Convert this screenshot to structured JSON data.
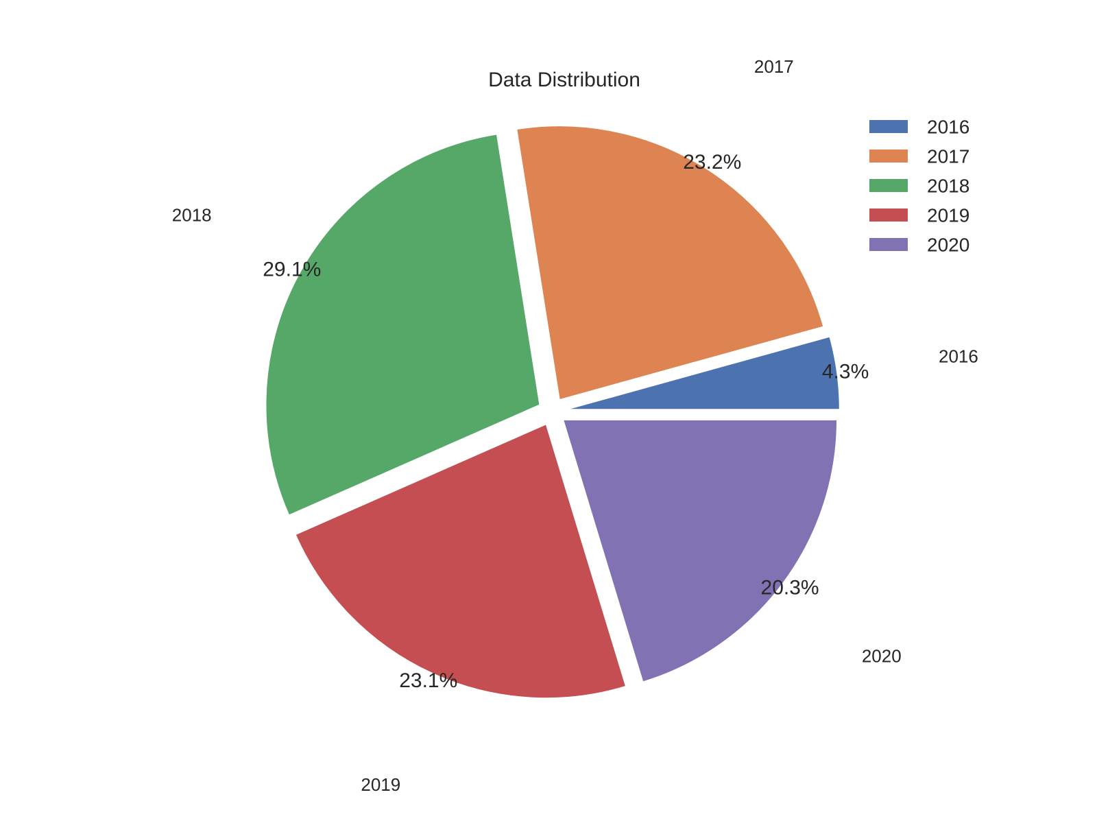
{
  "chart_data": {
    "type": "pie",
    "title": "Data Distribution",
    "categories": [
      "2016",
      "2017",
      "2018",
      "2019",
      "2020"
    ],
    "values": [
      4.3,
      23.2,
      29.1,
      23.1,
      20.3
    ],
    "percent_labels": [
      "4.3%",
      "23.2%",
      "29.1%",
      "23.1%",
      "20.3%"
    ],
    "colors": [
      "#4c72b0",
      "#dd8452",
      "#55a868",
      "#c44e52",
      "#8172b3"
    ],
    "start_angle_deg": 0,
    "direction": "counterclockwise",
    "exploded": true,
    "legend": {
      "position": "top-right",
      "entries": [
        "2016",
        "2017",
        "2018",
        "2019",
        "2020"
      ]
    }
  }
}
